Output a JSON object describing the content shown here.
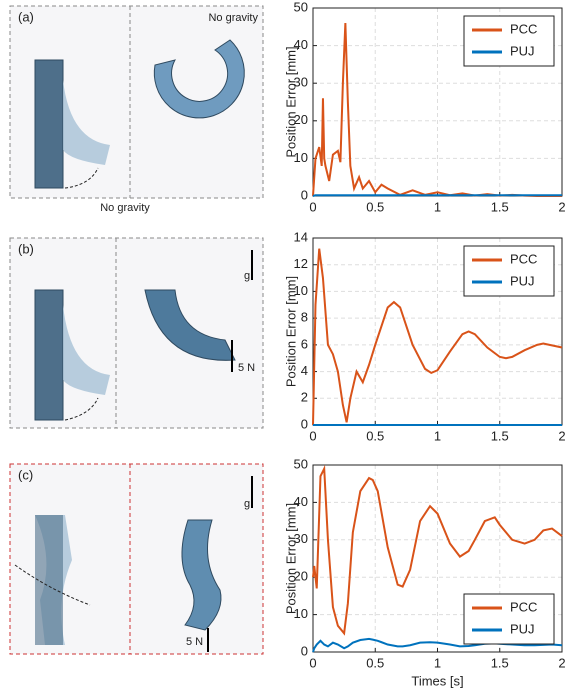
{
  "chart_data": [
    {
      "type": "line",
      "ylabel": "Position Error [mm]",
      "x": [
        0,
        0.02,
        0.05,
        0.07,
        0.08,
        0.09,
        0.1,
        0.13,
        0.16,
        0.2,
        0.22,
        0.24,
        0.26,
        0.28,
        0.3,
        0.33,
        0.37,
        0.4,
        0.45,
        0.5,
        0.55,
        0.6,
        0.7,
        0.8,
        0.9,
        1.0,
        1.1,
        1.2,
        1.3,
        1.4,
        1.5,
        1.6,
        1.7,
        1.8,
        2.0
      ],
      "series": [
        {
          "name": "PCC",
          "color": "#d95319",
          "values": [
            0,
            10,
            13,
            8,
            26,
            10,
            8,
            4,
            11,
            12,
            9,
            30,
            46,
            25,
            8,
            2,
            5,
            2,
            4,
            1,
            3,
            2,
            0.3,
            1.5,
            0.3,
            1,
            0.2,
            0.7,
            0.1,
            0.5,
            0.1,
            0.3,
            0.1,
            0,
            0
          ]
        },
        {
          "name": "PUJ",
          "color": "#0072bd",
          "values": [
            0,
            0.2,
            0.2,
            0.2,
            0.2,
            0.2,
            0.2,
            0.2,
            0.2,
            0.2,
            0.2,
            0.2,
            0.2,
            0.2,
            0.2,
            0.2,
            0.2,
            0.2,
            0.2,
            0.2,
            0.2,
            0.2,
            0.2,
            0.2,
            0.2,
            0.2,
            0.2,
            0.2,
            0.2,
            0.2,
            0.2,
            0.2,
            0.2,
            0.2,
            0.2
          ]
        }
      ],
      "xlim": [
        0,
        2
      ],
      "xticks": [
        0,
        0.5,
        1,
        1.5,
        2
      ],
      "ylim": [
        0,
        50
      ],
      "yticks": [
        0,
        10,
        20,
        30,
        40,
        50
      ],
      "grid": true,
      "legend": "upper-right"
    },
    {
      "type": "line",
      "ylabel": "Position Error [mm]",
      "x": [
        0,
        0.02,
        0.05,
        0.08,
        0.12,
        0.16,
        0.2,
        0.24,
        0.27,
        0.3,
        0.35,
        0.4,
        0.45,
        0.5,
        0.6,
        0.65,
        0.7,
        0.8,
        0.9,
        0.95,
        1.0,
        1.1,
        1.2,
        1.25,
        1.3,
        1.4,
        1.5,
        1.55,
        1.6,
        1.7,
        1.8,
        1.85,
        1.9,
        2.0
      ],
      "series": [
        {
          "name": "PCC",
          "color": "#d95319",
          "values": [
            0,
            9,
            13.2,
            11,
            6,
            5.3,
            4,
            1.5,
            0.2,
            2,
            4,
            3.2,
            4.5,
            6,
            8.8,
            9.2,
            8.8,
            6,
            4.2,
            3.9,
            4.1,
            5.5,
            6.8,
            7,
            6.8,
            5.8,
            5.1,
            5,
            5.1,
            5.6,
            6,
            6.1,
            6,
            5.8
          ]
        },
        {
          "name": "PUJ",
          "color": "#0072bd",
          "values": [
            0,
            0,
            0,
            0,
            0,
            0,
            0,
            0,
            0,
            0,
            0,
            0,
            0,
            0,
            0,
            0,
            0,
            0,
            0,
            0,
            0,
            0,
            0,
            0,
            0,
            0,
            0,
            0,
            0,
            0,
            0,
            0,
            0,
            0
          ]
        }
      ],
      "xlim": [
        0,
        2
      ],
      "xticks": [
        0,
        0.5,
        1,
        1.5,
        2
      ],
      "ylim": [
        0,
        14
      ],
      "yticks": [
        0,
        2,
        4,
        6,
        8,
        10,
        12,
        14
      ],
      "grid": true,
      "legend": "upper-right"
    },
    {
      "type": "line",
      "ylabel": "Position Error [mm]",
      "xlabel": "Times [s]",
      "x": [
        0,
        0.01,
        0.03,
        0.06,
        0.09,
        0.12,
        0.16,
        0.2,
        0.25,
        0.28,
        0.32,
        0.38,
        0.45,
        0.48,
        0.52,
        0.6,
        0.68,
        0.72,
        0.78,
        0.86,
        0.94,
        1.0,
        1.1,
        1.18,
        1.25,
        1.3,
        1.38,
        1.46,
        1.5,
        1.6,
        1.7,
        1.78,
        1.85,
        1.92,
        2.0
      ],
      "series": [
        {
          "name": "PCC",
          "color": "#d95319",
          "values": [
            20,
            23,
            17,
            47,
            49,
            30,
            12,
            7,
            5,
            13,
            32,
            43,
            46.5,
            46,
            43,
            28,
            18,
            17.5,
            22,
            35,
            39,
            37,
            29,
            25.5,
            27,
            30,
            35,
            36,
            34,
            30,
            29,
            30,
            32.5,
            33,
            31
          ]
        },
        {
          "name": "PUJ",
          "color": "#0072bd",
          "values": [
            0,
            1,
            2,
            3,
            2,
            1.5,
            2.5,
            2,
            1,
            1.5,
            2.5,
            3.2,
            3.5,
            3.3,
            3,
            2,
            1.5,
            1.5,
            1.8,
            2.5,
            2.6,
            2.5,
            2,
            1.5,
            1.6,
            1.8,
            2.2,
            2.3,
            2.2,
            2,
            1.8,
            1.8,
            1.9,
            2,
            1.8
          ]
        }
      ],
      "xlim": [
        0,
        2
      ],
      "xticks": [
        0,
        0.5,
        1,
        1.5,
        2
      ],
      "ylim": [
        0,
        50
      ],
      "yticks": [
        0,
        10,
        20,
        30,
        40,
        50
      ],
      "grid": true,
      "legend": "lower-right"
    }
  ],
  "illustrations": [
    {
      "label": "(a)",
      "top_note": "No gravity",
      "bottom_note": "No gravity"
    },
    {
      "label": "(b)",
      "gravity": "g",
      "force": "5 N"
    },
    {
      "label": "(c)",
      "gravity": "g",
      "force": "5 N"
    }
  ]
}
